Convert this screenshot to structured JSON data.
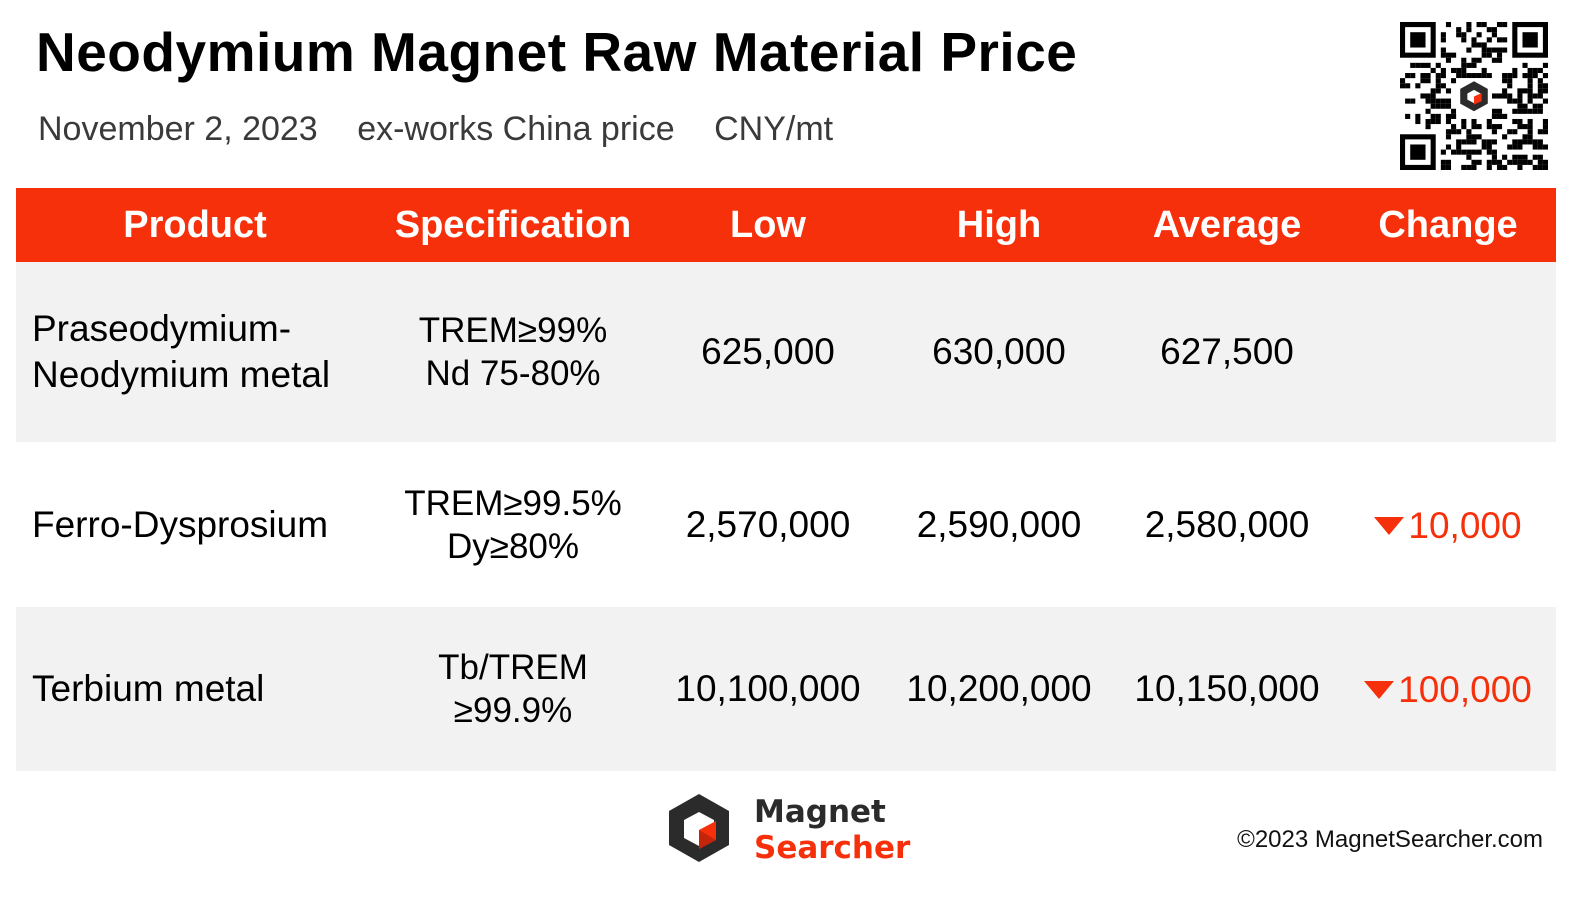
{
  "header": {
    "title": "Neodymium Magnet Raw Material Price",
    "date": "November 2, 2023",
    "basis": "ex-works China price",
    "unit": "CNY/mt"
  },
  "chart_data": {
    "type": "table",
    "title": "Neodymium Magnet Raw Material Price",
    "columns": [
      "Product",
      "Specification",
      "Low",
      "High",
      "Average",
      "Change"
    ],
    "rows": [
      {
        "product": [
          "Praseodymium-",
          "Neodymium metal"
        ],
        "spec": [
          "TREM≥99%",
          "Nd 75-80%"
        ],
        "low": "625,000",
        "high": "630,000",
        "average": "627,500",
        "change": "",
        "change_direction": ""
      },
      {
        "product": [
          "Ferro-Dysprosium"
        ],
        "spec": [
          "TREM≥99.5%",
          "Dy≥80%"
        ],
        "low": "2,570,000",
        "high": "2,590,000",
        "average": "2,580,000",
        "change": "10,000",
        "change_direction": "down"
      },
      {
        "product": [
          "Terbium metal"
        ],
        "spec": [
          "Tb/TREM",
          "≥99.9%"
        ],
        "low": "10,100,000",
        "high": "10,200,000",
        "average": "10,150,000",
        "change": "100,000",
        "change_direction": "down"
      }
    ]
  },
  "footer": {
    "logo_line1": "Magnet",
    "logo_line2": "Searcher",
    "copyright": "©2023 MagnetSearcher.com"
  },
  "colors": {
    "accent": "#f5300a",
    "row_alt": "#f2f2f2"
  },
  "icons": {
    "qr": "qr-code-icon",
    "down": "triangle-down-icon",
    "logo": "magnet-searcher-logo-icon"
  }
}
